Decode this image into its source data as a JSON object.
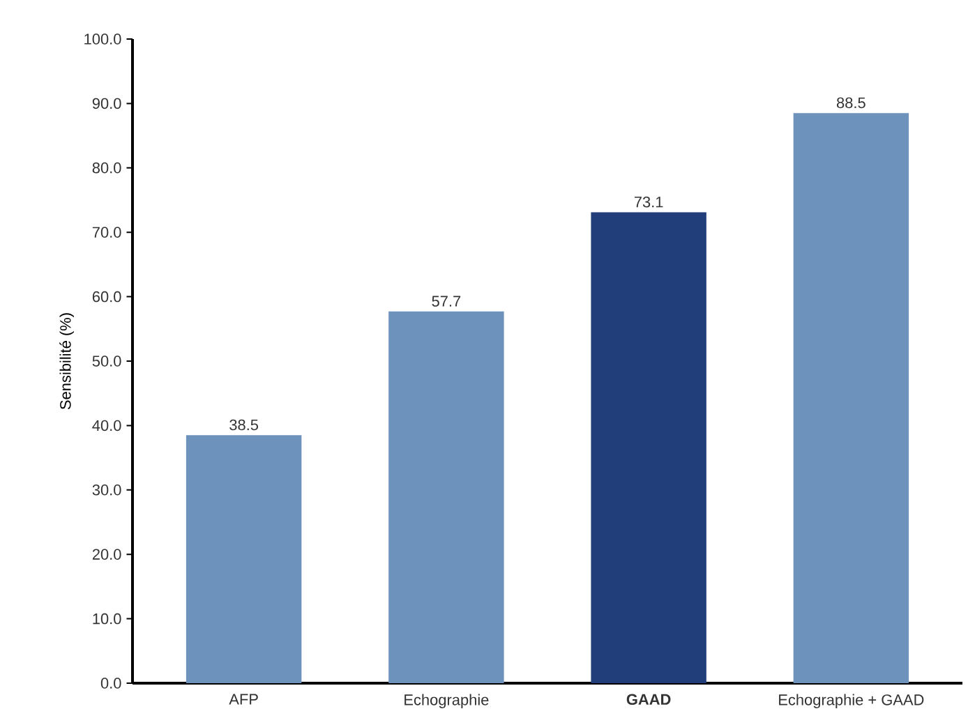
{
  "chart_data": {
    "type": "bar",
    "ylabel": "Sensibilité (%)",
    "categories": [
      "AFP",
      "Echographie",
      "**GAAD**",
      "Echographie + GAAD"
    ],
    "values": [
      38.5,
      57.7,
      73.1,
      88.5
    ],
    "colors": [
      "#6d93bc",
      "#6d93bc",
      "#213e7b",
      "#6d93bc"
    ],
    "ylim": [
      0,
      100
    ],
    "yticks": [
      {
        "value": 0,
        "label": "0.0"
      },
      {
        "value": 10,
        "label": "10.0"
      },
      {
        "value": 20,
        "label": "20.0"
      },
      {
        "value": 30,
        "label": "30.0"
      },
      {
        "value": 40,
        "label": "40.0"
      },
      {
        "value": 50,
        "label": "50.0"
      },
      {
        "value": 60,
        "label": "60.0"
      },
      {
        "value": 70,
        "label": "70.0"
      },
      {
        "value": 80,
        "label": "80.0"
      },
      {
        "value": 90,
        "label": "90.0"
      },
      {
        "value": 100,
        "label": "100.0"
      }
    ],
    "data_labels": true,
    "grid": false
  }
}
